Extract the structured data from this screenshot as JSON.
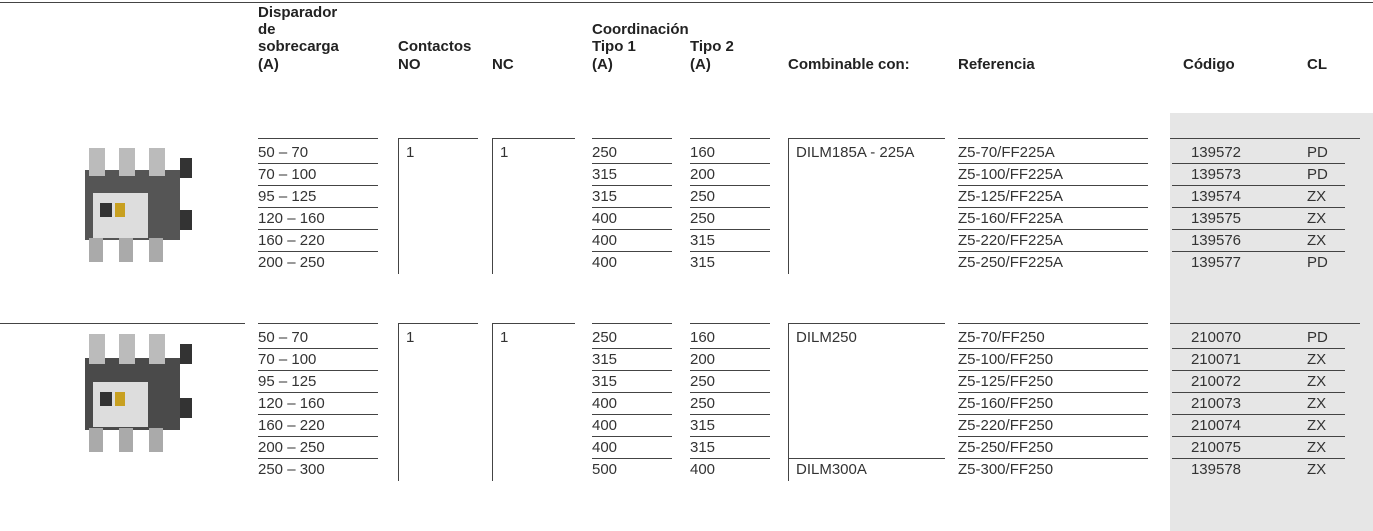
{
  "header": {
    "disparador": [
      "Disparador",
      "de",
      "sobrecarga",
      "(A)"
    ],
    "contactos": "Contactos",
    "no": "NO",
    "nc": "NC",
    "coordinacion": "Coordinación",
    "tipo1": [
      "Tipo 1",
      "(A)"
    ],
    "tipo2": [
      "Tipo 2",
      "(A)"
    ],
    "combinable": "Combinable con:",
    "referencia": "Referencia",
    "codigo": "Código",
    "cl": "CL"
  },
  "groups": [
    {
      "no": "1",
      "nc": "1",
      "rows": [
        {
          "range": "50 – 70",
          "tipo1": "250",
          "tipo2": "160",
          "combinable": "DILM185A - 225A",
          "referencia": "Z5-70/FF225A",
          "codigo": "139572",
          "cl": "PD"
        },
        {
          "range": "70 – 100",
          "tipo1": "315",
          "tipo2": "200",
          "referencia": "Z5-100/FF225A",
          "codigo": "139573",
          "cl": "PD"
        },
        {
          "range": "95 – 125",
          "tipo1": "315",
          "tipo2": "250",
          "referencia": "Z5-125/FF225A",
          "codigo": "139574",
          "cl": "ZX"
        },
        {
          "range": "120 – 160",
          "tipo1": "400",
          "tipo2": "250",
          "referencia": "Z5-160/FF225A",
          "codigo": "139575",
          "cl": "ZX"
        },
        {
          "range": "160 – 220",
          "tipo1": "400",
          "tipo2": "315",
          "referencia": "Z5-220/FF225A",
          "codigo": "139576",
          "cl": "ZX"
        },
        {
          "range": "200 – 250",
          "tipo1": "400",
          "tipo2": "315",
          "referencia": "Z5-250/FF225A",
          "codigo": "139577",
          "cl": "PD"
        }
      ]
    },
    {
      "no": "1",
      "nc": "1",
      "rows": [
        {
          "range": "50 – 70",
          "tipo1": "250",
          "tipo2": "160",
          "combinable": "DILM250",
          "referencia": "Z5-70/FF250",
          "codigo": "210070",
          "cl": "PD"
        },
        {
          "range": "70 – 100",
          "tipo1": "315",
          "tipo2": "200",
          "referencia": "Z5-100/FF250",
          "codigo": "210071",
          "cl": "ZX"
        },
        {
          "range": "95 – 125",
          "tipo1": "315",
          "tipo2": "250",
          "referencia": "Z5-125/FF250",
          "codigo": "210072",
          "cl": "ZX"
        },
        {
          "range": "120 – 160",
          "tipo1": "400",
          "tipo2": "250",
          "referencia": "Z5-160/FF250",
          "codigo": "210073",
          "cl": "ZX"
        },
        {
          "range": "160 – 220",
          "tipo1": "400",
          "tipo2": "315",
          "referencia": "Z5-220/FF250",
          "codigo": "210074",
          "cl": "ZX"
        },
        {
          "range": "200 – 250",
          "tipo1": "400",
          "tipo2": "315",
          "referencia": "Z5-250/FF250",
          "codigo": "210075",
          "cl": "ZX"
        },
        {
          "range": "250 – 300",
          "tipo1": "500",
          "tipo2": "400",
          "combinable": "DILM300A",
          "referencia": "Z5-300/FF250",
          "codigo": "139578",
          "cl": "ZX"
        }
      ]
    }
  ]
}
